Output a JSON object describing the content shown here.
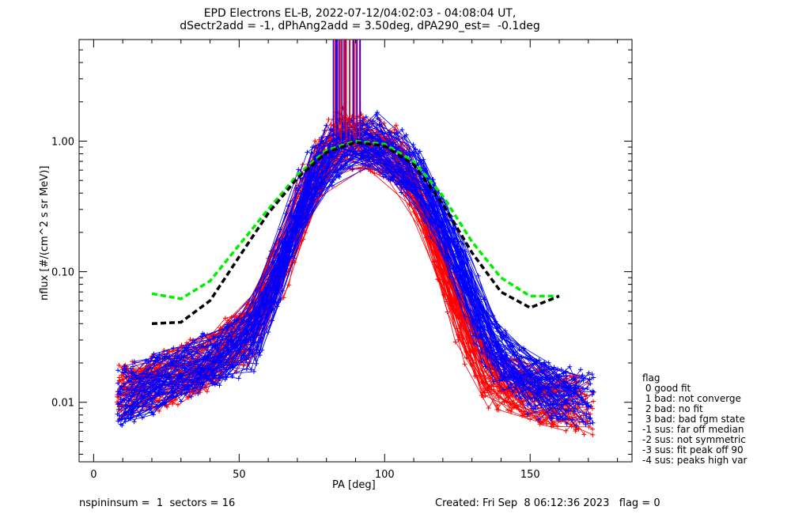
{
  "header": {
    "title_line1": "EPD Electrons EL-B, 2022-07-12/04:02:03 - 04:08:04 UT,",
    "title_line2": "dSectr2add = -1, dPhAng2add = 3.50deg, dPA290_est=  -0.1deg"
  },
  "footer": {
    "left": "nspininsum =  1  sectors = 16",
    "right": "Created: Fri Sep  8 06:12:36 2023   flag = 0"
  },
  "legend": {
    "title": "flag",
    "items": [
      " 0 good fit",
      " 1 bad: not converge",
      " 2 bad: no fit",
      " 3 bad: bad fgm state",
      "-1 sus: far off median",
      "-2 sus: not symmetric",
      "-3 sus: fit peak off 90",
      "-4 sus: peaks high var"
    ]
  },
  "colors": {
    "series_red": "#ff0000",
    "series_blue": "#0000ff",
    "fit_green": "#00ee00",
    "fit_black": "#000000",
    "axis": "#000000",
    "background": "#ffffff"
  },
  "chart_data": {
    "type": "line",
    "xlabel": "PA [deg]",
    "ylabel": "nflux [#/(cm^2 s sr MeV)]",
    "xlim": [
      -5,
      185
    ],
    "ylim": [
      0.0035,
      6.0
    ],
    "yscale": "log",
    "xticks": [
      0,
      50,
      100,
      150
    ],
    "xtick_labels": [
      "0",
      "50",
      "100",
      "150"
    ],
    "yticks": [
      0.01,
      0.1,
      1.0
    ],
    "ytick_labels": [
      "0.01",
      "0.10",
      "1.00"
    ],
    "grid": false,
    "series": [
      {
        "color": "red",
        "description_style": "many thin lines with + markers",
        "profile_x": [
          8,
          22,
          38,
          55,
          65,
          75,
          85,
          90,
          95,
          105,
          115,
          125,
          135,
          150,
          165,
          172
        ],
        "profile_y": [
          0.012,
          0.014,
          0.02,
          0.035,
          0.12,
          0.5,
          1.1,
          1.0,
          0.95,
          0.8,
          0.3,
          0.05,
          0.015,
          0.012,
          0.01,
          0.009
        ]
      },
      {
        "color": "blue",
        "description_style": "many thin lines with + markers",
        "profile_x": [
          8,
          22,
          38,
          55,
          65,
          75,
          85,
          90,
          95,
          105,
          115,
          125,
          135,
          150,
          165
        ],
        "profile_y": [
          0.011,
          0.014,
          0.02,
          0.03,
          0.13,
          0.55,
          1.0,
          1.0,
          1.05,
          0.75,
          0.4,
          0.12,
          0.03,
          0.013,
          0.011
        ]
      },
      {
        "color": "green",
        "style": "dashed fit",
        "x": [
          20,
          30,
          40,
          50,
          60,
          70,
          80,
          90,
          100,
          110,
          120,
          130,
          140,
          150,
          160
        ],
        "y": [
          0.068,
          0.062,
          0.085,
          0.16,
          0.3,
          0.55,
          0.85,
          1.0,
          0.95,
          0.7,
          0.38,
          0.17,
          0.09,
          0.065,
          0.065
        ]
      },
      {
        "color": "black",
        "style": "dashed fit",
        "x": [
          20,
          30,
          40,
          50,
          60,
          70,
          80,
          90,
          100,
          110,
          120,
          130,
          140,
          150,
          160
        ],
        "y": [
          0.04,
          0.041,
          0.06,
          0.13,
          0.28,
          0.52,
          0.82,
          0.98,
          0.92,
          0.66,
          0.33,
          0.14,
          0.07,
          0.053,
          0.065
        ]
      }
    ],
    "spikes_near_x": [
      82,
      92
    ],
    "spike_top": 6.0
  }
}
